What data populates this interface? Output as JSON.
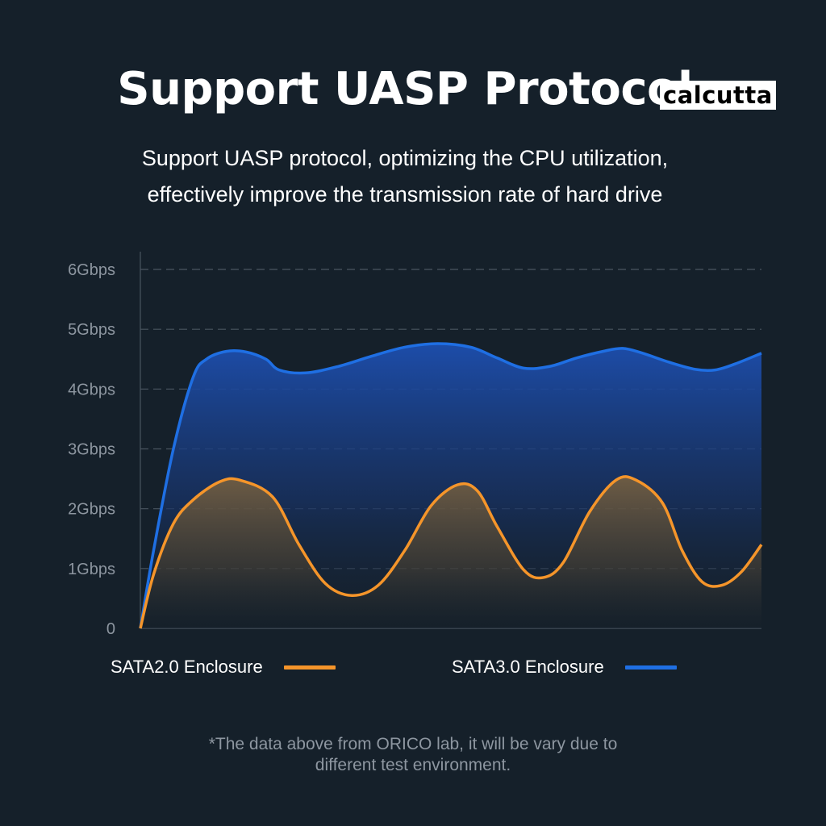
{
  "title": "Support UASP Protocol",
  "watermark": "calcutta",
  "subtitle": {
    "line1": "Support UASP protocol, optimizing the CPU utilization,",
    "line2": "effectively improve the transmission rate of hard drive"
  },
  "footnote": {
    "line1": "*The data above from ORICO lab, it will be vary due to",
    "line2": "different test environment."
  },
  "colors": {
    "background": "#15202a",
    "sata2": "#f5952a",
    "sata3": "#1f6fe3",
    "grid": "#4a5560",
    "tick_text": "#8d96a0"
  },
  "chart_data": {
    "type": "area",
    "y_tick_labels": [
      "0",
      "1Gbps",
      "2Gbps",
      "3Gbps",
      "4Gbps",
      "5Gbps",
      "6Gbps"
    ],
    "ylim": [
      0,
      6
    ],
    "grid": true,
    "legend_position": "bottom",
    "series": [
      {
        "name": "SATA2.0 Enclosure",
        "color": "#f5952a",
        "points": [
          [
            0,
            0
          ],
          [
            0.2,
            0.9
          ],
          [
            0.5,
            1.75
          ],
          [
            0.8,
            2.15
          ],
          [
            1.2,
            2.45
          ],
          [
            1.5,
            2.48
          ],
          [
            2.0,
            2.2
          ],
          [
            2.4,
            1.4
          ],
          [
            2.8,
            0.75
          ],
          [
            3.2,
            0.55
          ],
          [
            3.6,
            0.72
          ],
          [
            4.0,
            1.3
          ],
          [
            4.4,
            2.05
          ],
          [
            4.8,
            2.4
          ],
          [
            5.1,
            2.3
          ],
          [
            5.4,
            1.7
          ],
          [
            5.8,
            0.98
          ],
          [
            6.1,
            0.85
          ],
          [
            6.4,
            1.1
          ],
          [
            6.8,
            1.95
          ],
          [
            7.2,
            2.48
          ],
          [
            7.5,
            2.48
          ],
          [
            7.9,
            2.1
          ],
          [
            8.2,
            1.3
          ],
          [
            8.5,
            0.78
          ],
          [
            8.8,
            0.72
          ],
          [
            9.1,
            0.95
          ],
          [
            9.4,
            1.4
          ]
        ]
      },
      {
        "name": "SATA3.0 Enclosure",
        "color": "#1f6fe3",
        "points": [
          [
            0,
            0
          ],
          [
            0.2,
            1.3
          ],
          [
            0.5,
            3.0
          ],
          [
            0.8,
            4.2
          ],
          [
            1.0,
            4.5
          ],
          [
            1.3,
            4.63
          ],
          [
            1.6,
            4.62
          ],
          [
            1.9,
            4.5
          ],
          [
            2.1,
            4.32
          ],
          [
            2.5,
            4.27
          ],
          [
            3.0,
            4.38
          ],
          [
            3.5,
            4.55
          ],
          [
            4.0,
            4.7
          ],
          [
            4.5,
            4.76
          ],
          [
            5.0,
            4.7
          ],
          [
            5.4,
            4.52
          ],
          [
            5.8,
            4.35
          ],
          [
            6.2,
            4.38
          ],
          [
            6.6,
            4.52
          ],
          [
            7.0,
            4.63
          ],
          [
            7.3,
            4.68
          ],
          [
            7.6,
            4.6
          ],
          [
            8.0,
            4.45
          ],
          [
            8.4,
            4.33
          ],
          [
            8.7,
            4.32
          ],
          [
            9.0,
            4.42
          ],
          [
            9.4,
            4.6
          ]
        ]
      }
    ]
  }
}
